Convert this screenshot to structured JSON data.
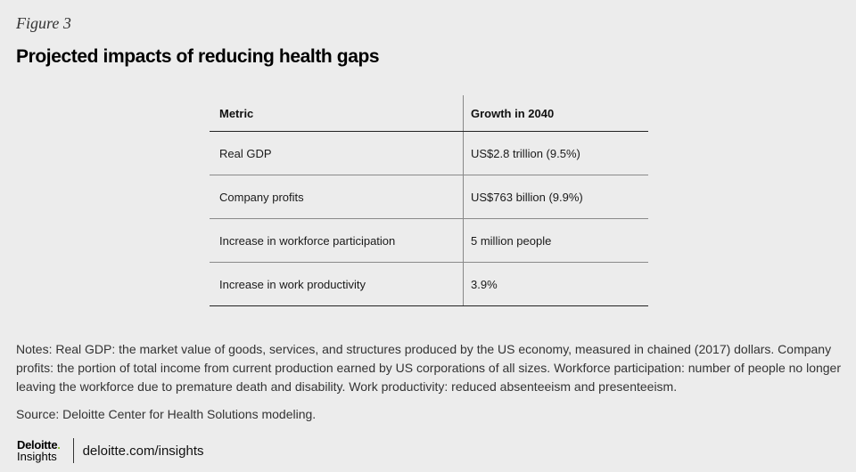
{
  "figure_label": "Figure 3",
  "title": "Projected impacts of reducing health gaps",
  "table": {
    "headers": [
      "Metric",
      "Growth in 2040"
    ],
    "rows": [
      [
        "Real GDP",
        "US$2.8 trillion (9.5%)"
      ],
      [
        "Company profits",
        "US$763 billion (9.9%)"
      ],
      [
        "Increase in workforce participation",
        "5 million people"
      ],
      [
        "Increase in work productivity",
        "3.9%"
      ]
    ]
  },
  "notes": "Notes: Real GDP: the market value of goods, services, and structures produced by the US economy, measured in chained (2017) dollars. Company profits: the portion of total income from current production earned by US corporations of all sizes. Workforce participation: number of people no longer leaving the workforce due to premature death and disability. Work productivity: reduced absenteeism and presenteeism.",
  "source": "Source: Deloitte Center for Health Solutions modeling.",
  "footer": {
    "logo_top": "Deloitte",
    "logo_dot": ".",
    "logo_bottom": "Insights",
    "site": "deloitte.com/insights"
  },
  "colors": {
    "background": "#ececec",
    "brand_green": "#86bc25"
  }
}
